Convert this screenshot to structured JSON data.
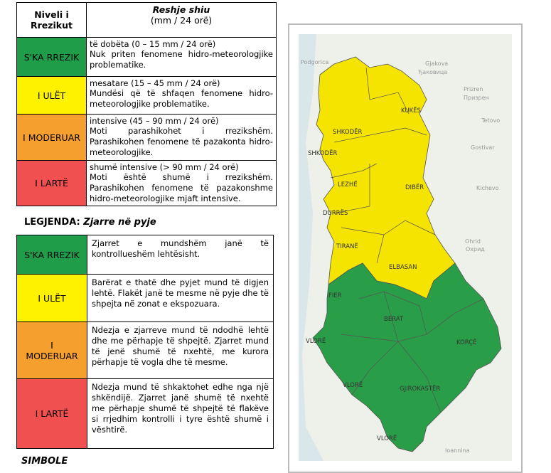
{
  "rain_table": {
    "header": {
      "level": "Niveli i Rrezikut",
      "title": "Reshje shiu",
      "unit": "(mm / 24 orë)"
    },
    "rows": [
      {
        "level": "S'KA RREZIK",
        "amount": "të dobëta  (0 – 15 mm / 24 orë)",
        "description": "Nuk priten fenomene hidro-meteorologjike problematike."
      },
      {
        "level": "I ULËT",
        "amount": "mesatare (15 – 45 mm / 24 orë)",
        "description": "Mundësi që të shfaqen fenomene hidro-meteorologjike problematike."
      },
      {
        "level": "I MODERUAR",
        "amount": "intensive (45 – 90 mm / 24 orë)",
        "description": "Moti parashikohet i rrezikshëm. Parashikohen fenomene të pazakonta hidro-meteorologjike."
      },
      {
        "level": "I LARTË",
        "amount": "shumë intensive (> 90 mm / 24 orë)",
        "description": "Moti është shumë i rrezikshëm. Parashikohen fenomene të pazakonshme hidro-meteorologjike mjaft intensive."
      }
    ]
  },
  "legend_title": {
    "label": "LEGJENDA:",
    "subject": "Zjarre në pyje"
  },
  "fire_table": {
    "rows": [
      {
        "level": "S'KA RREZIK",
        "description": "Zjarret e mundshëm janë të kontrollueshëm lehtësisht."
      },
      {
        "level": "I ULËT",
        "description": "Barërat e thatë dhe pyjet mund të digjen lehtë. Flakët janë te mesme në pyje dhe të shpejta në zonat e ekspozuara."
      },
      {
        "level": "I MODERUAR",
        "description": "Ndezja e zjarreve mund të ndodhë lehtë dhe me përhapje të shpejtë. Zjarret mund të jenë shumë të nxehtë, me kurora përhapje të vogla dhe të mesme."
      },
      {
        "level": "I LARTË",
        "description": "Ndezja mund të shkaktohet edhe nga një shkëndijë. Zjarret janë shumë të nxehtë me përhapje shumë të shpejtë të flakëve si rrjedhim kontrolli i tyre është shumë i vështirë."
      }
    ]
  },
  "symbols_title": "SIMBOLE",
  "map": {
    "regions": [
      "SHKODËR",
      "KUKËS",
      "SHKODËR",
      "LEZHË",
      "DIBËR",
      "DURRËS",
      "TIRANË",
      "ELBASAN",
      "FIER",
      "BERAT",
      "VLORË",
      "KORÇË",
      "VLORË",
      "GJIROKASTËR",
      "VLORË"
    ],
    "places": [
      "Podgorica",
      "Gjakova",
      "Ђаковица",
      "Prizren",
      "Призрен",
      "Tetovo",
      "Gostivar",
      "Kichevo",
      "Ohrid",
      "Охрид",
      "Ioannina"
    ]
  }
}
